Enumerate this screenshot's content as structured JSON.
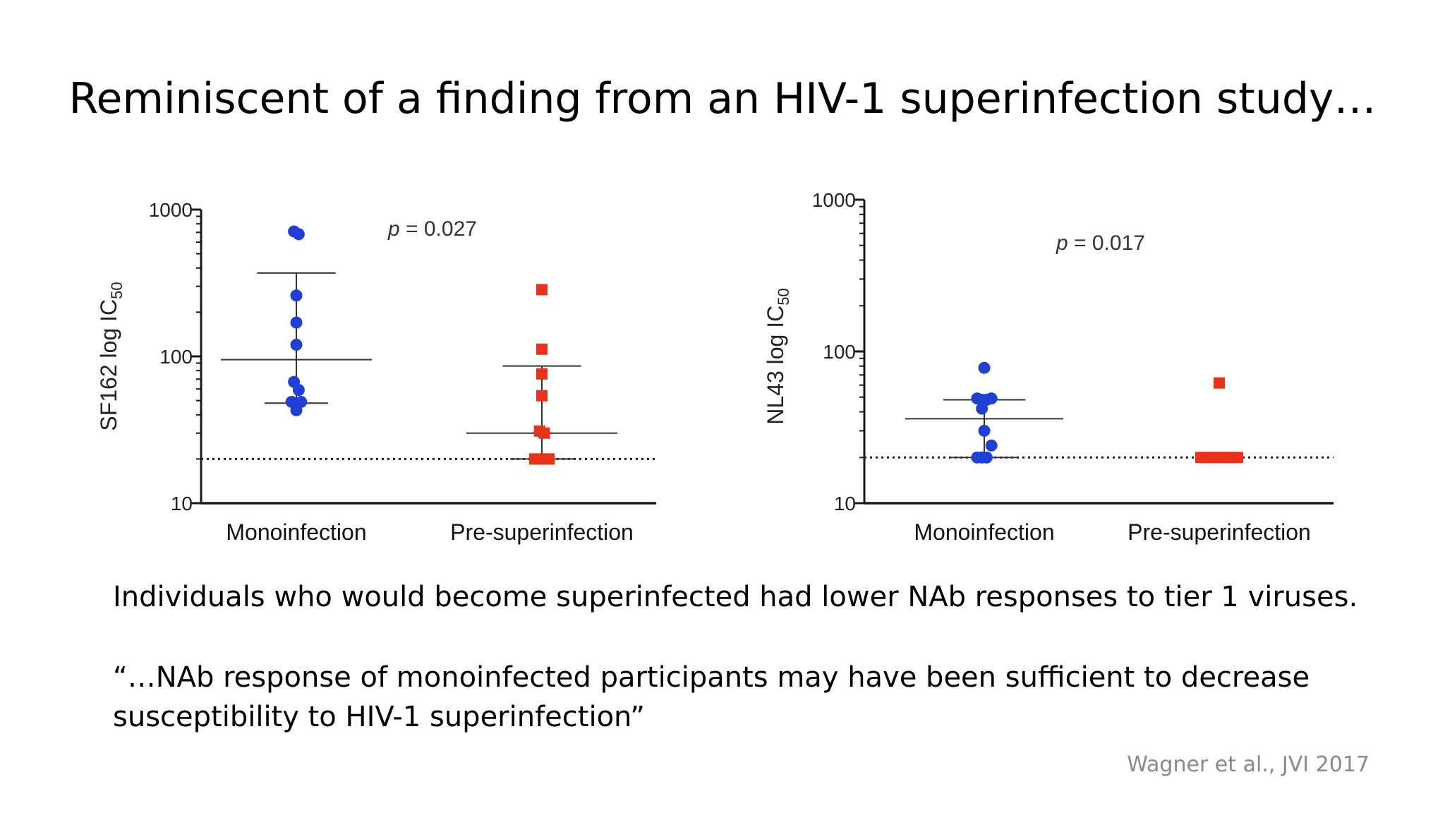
{
  "slide": {
    "title": "Reminiscent of a finding from an HIV-1 superinfection study…",
    "body_line_1": "Individuals who would become superinfected had lower NAb responses to tier 1 viruses.",
    "quote_line_1": "“…NAb response of monoinfected participants may have been sufficient to decrease",
    "quote_line_2": "susceptibility to HIV-1 superinfection”",
    "citation": "Wagner et al., JVI 2017"
  },
  "colors": {
    "mono": "#1f3fd6",
    "pre": "#e8321c",
    "axis": "#1a1a1a"
  },
  "chart_data": [
    {
      "type": "scatter",
      "yscale": "log",
      "ylim": [
        10,
        1000
      ],
      "yticks": [
        10,
        100,
        1000
      ],
      "yticklabels": [
        "10",
        "100",
        "1000"
      ],
      "ylabel": "SF162 log IC",
      "ylabel_sub": "50",
      "categories": [
        "Monoinfection",
        "Pre-superinfection"
      ],
      "annotation_prefix": "p",
      "annotation_value": " = 0.027",
      "reference_line": 20,
      "series": [
        {
          "marker": "circle",
          "points": [
            [
              -0.1,
              710
            ],
            [
              0.1,
              680
            ],
            [
              0,
              260
            ],
            [
              0,
              170
            ],
            [
              0,
              120
            ],
            [
              -0.1,
              67
            ],
            [
              0.1,
              59
            ],
            [
              -0.2,
              49
            ],
            [
              0.2,
              49
            ],
            [
              0,
              43
            ]
          ],
          "central": 95,
          "err_low": 48,
          "err_high": 370
        },
        {
          "marker": "square",
          "points": [
            [
              0,
              285
            ],
            [
              0,
              112
            ],
            [
              0,
              76
            ],
            [
              0,
              54
            ],
            [
              -0.1,
              31
            ],
            [
              0.1,
              30
            ],
            [
              -0.3,
              20
            ],
            [
              -0.1,
              20
            ],
            [
              0.1,
              20
            ],
            [
              0.3,
              20
            ]
          ],
          "central": 30,
          "err_low": 20,
          "err_high": 86
        }
      ]
    },
    {
      "type": "scatter",
      "yscale": "log",
      "ylim": [
        10,
        1000
      ],
      "yticks": [
        10,
        100,
        1000
      ],
      "yticklabels": [
        "10",
        "100",
        "1000"
      ],
      "ylabel": "NL43 log IC",
      "ylabel_sub": "50",
      "categories": [
        "Monoinfection",
        "Pre-superinfection"
      ],
      "annotation_prefix": "p",
      "annotation_value": " = 0.017",
      "reference_line": 20,
      "series": [
        {
          "marker": "circle",
          "points": [
            [
              0,
              78
            ],
            [
              -0.3,
              49
            ],
            [
              0.3,
              49
            ],
            [
              -0.1,
              48
            ],
            [
              0.1,
              48
            ],
            [
              -0.1,
              42
            ],
            [
              0,
              30
            ],
            [
              0.3,
              24
            ],
            [
              -0.3,
              20
            ],
            [
              -0.1,
              20
            ],
            [
              0.1,
              20
            ]
          ],
          "central": 36,
          "err_low": 20,
          "err_high": 48
        },
        {
          "marker": "square",
          "points": [
            [
              0,
              62
            ],
            [
              -0.8,
              20
            ],
            [
              -0.6,
              20
            ],
            [
              -0.4,
              20
            ],
            [
              -0.2,
              20
            ],
            [
              0,
              20
            ],
            [
              0.2,
              20
            ],
            [
              0.4,
              20
            ],
            [
              0.6,
              20
            ],
            [
              0.8,
              20
            ]
          ],
          "central": 20,
          "err_low": 20,
          "err_high": 20
        }
      ]
    }
  ]
}
